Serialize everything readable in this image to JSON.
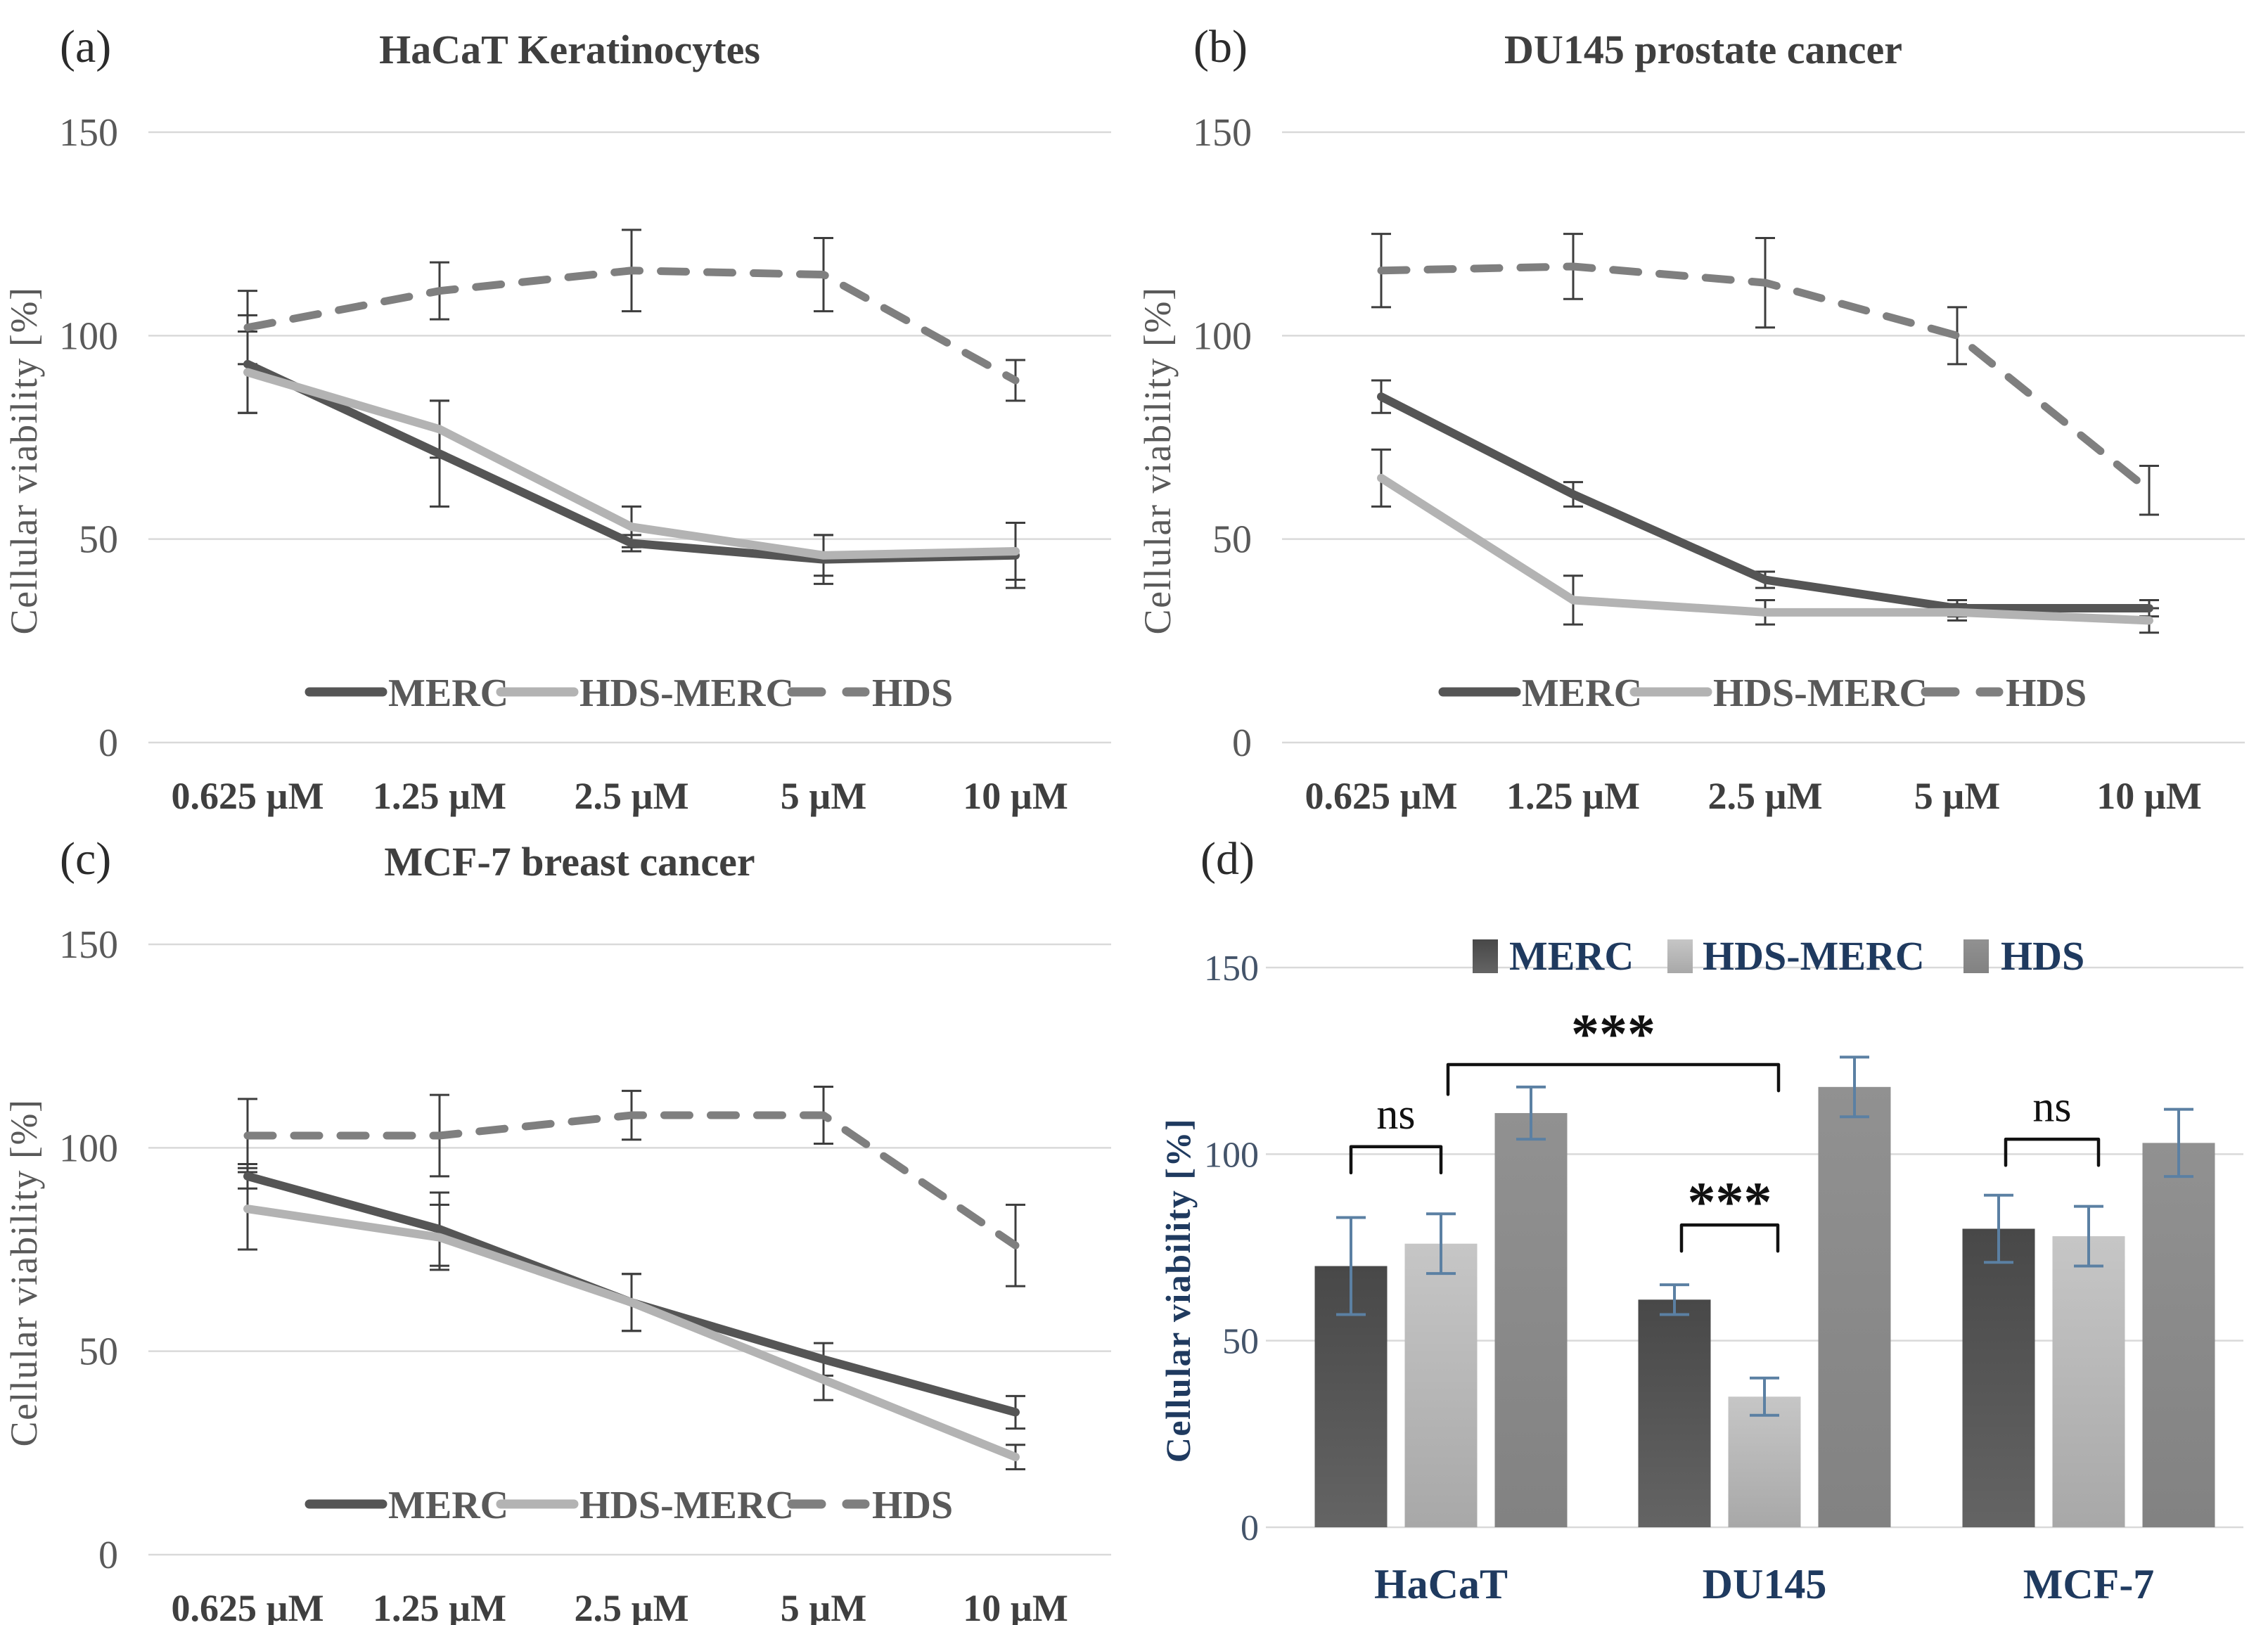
{
  "figure_caption": "Cellular viability panels",
  "colors": {
    "merc": "#555555",
    "hds_merc": "#b3b3b3",
    "hds": "#7f7f7f",
    "bar_merc_top": "#484848",
    "bar_merc_bottom": "#646464",
    "bar_hdsmerc_top": "#c6c6c6",
    "bar_hdsmerc_bottom": "#a8a8a8",
    "bar_hds_top": "#919191",
    "bar_hds_bottom": "#828282",
    "gridline": "#d9d9d9",
    "axis_text": "#595959",
    "xtick_text": "#3f3f3f",
    "title_text": "#3f3f3f",
    "panel_label_text": "#2b2b2b",
    "navy_text": "#1f3a5f",
    "ytick_bar_text": "#44546a",
    "error_bar_line": "#3d3d3d",
    "error_bar_blue": "#5b80a3",
    "annotation": "#111111"
  },
  "chart_data": [
    {
      "id": "a",
      "type": "line",
      "panel_label": "(a)",
      "title": "HaCaT Keratinocytes",
      "ylabel": "Cellular viability [%]",
      "yticks": [
        150,
        100,
        50,
        0
      ],
      "ylim": [
        0,
        150
      ],
      "grid": true,
      "legend_position": "inside-bottom",
      "categories": [
        "0.625 µM",
        "1.25 µM",
        "2.5 µM",
        "5 µM",
        "10 µM"
      ],
      "series": [
        {
          "name": "MERC",
          "style": "solid-dark",
          "values": [
            93,
            71,
            49,
            45,
            46
          ],
          "errors": [
            12,
            13,
            2,
            6,
            8
          ]
        },
        {
          "name": "HDS-MERC",
          "style": "solid-light",
          "values": [
            91,
            77,
            53,
            46,
            47
          ],
          "errors": [
            10,
            7,
            5,
            5,
            7
          ]
        },
        {
          "name": "HDS",
          "style": "dashed",
          "values": [
            102,
            111,
            116,
            115,
            89
          ],
          "errors": [
            9,
            7,
            10,
            9,
            5
          ]
        }
      ]
    },
    {
      "id": "b",
      "type": "line",
      "panel_label": "(b)",
      "title": "DU145 prostate cancer",
      "ylabel": "Cellular viability [%]",
      "yticks": [
        150,
        100,
        50,
        0
      ],
      "ylim": [
        0,
        150
      ],
      "grid": true,
      "legend_position": "inside-bottom",
      "categories": [
        "0.625 µM",
        "1.25 µM",
        "2.5 µM",
        "5 µM",
        "10 µM"
      ],
      "series": [
        {
          "name": "MERC",
          "style": "solid-dark",
          "values": [
            85,
            61,
            40,
            33,
            33
          ],
          "errors": [
            4,
            3,
            2,
            2,
            2
          ]
        },
        {
          "name": "HDS-MERC",
          "style": "solid-light",
          "values": [
            65,
            35,
            32,
            32,
            30
          ],
          "errors": [
            7,
            6,
            3,
            2,
            3
          ]
        },
        {
          "name": "HDS",
          "style": "dashed",
          "values": [
            116,
            117,
            113,
            100,
            62
          ],
          "errors": [
            9,
            8,
            11,
            7,
            6
          ]
        }
      ]
    },
    {
      "id": "c",
      "type": "line",
      "panel_label": "(c)",
      "title": "MCF-7 breast cancer",
      "ylabel": "Cellular viability [%]",
      "yticks": [
        150,
        100,
        50,
        0
      ],
      "ylim": [
        0,
        150
      ],
      "grid": true,
      "legend_position": "inside-bottom",
      "categories": [
        "0.625 µM",
        "1.25 µM",
        "2.5 µM",
        "5 µM",
        "10 µM"
      ],
      "series": [
        {
          "name": "MERC",
          "style": "solid-dark",
          "values": [
            93,
            80,
            62,
            48,
            35
          ],
          "errors": [
            3,
            9,
            7,
            4,
            4
          ]
        },
        {
          "name": "HDS-MERC",
          "style": "solid-light",
          "values": [
            85,
            78,
            62,
            43,
            24
          ],
          "errors": [
            10,
            8,
            7,
            5,
            3
          ]
        },
        {
          "name": "HDS",
          "style": "dashed",
          "values": [
            103,
            103,
            108,
            108,
            76
          ],
          "errors": [
            9,
            10,
            6,
            7,
            10
          ]
        }
      ]
    },
    {
      "id": "d",
      "type": "bar",
      "panel_label": "(d)",
      "title": "",
      "ylabel": "Cellular viability [%]",
      "yticks": [
        150,
        100,
        50,
        0
      ],
      "ylim": [
        0,
        150
      ],
      "grid": true,
      "legend_position": "top",
      "categories": [
        "HaCaT",
        "DU145",
        "MCF-7"
      ],
      "series": [
        {
          "name": "MERC",
          "values": [
            70,
            61,
            80
          ],
          "errors": [
            13,
            4,
            9
          ]
        },
        {
          "name": "HDS-MERC",
          "values": [
            76,
            35,
            78
          ],
          "errors": [
            8,
            5,
            8
          ]
        },
        {
          "name": "HDS",
          "values": [
            111,
            118,
            103
          ],
          "errors": [
            7,
            8,
            9
          ]
        }
      ],
      "annotations": [
        {
          "label": "ns",
          "from": [
            0,
            0
          ],
          "to": [
            0,
            1
          ],
          "bar_y": 102,
          "tick1": 95,
          "tick2": 95,
          "label_y": 111,
          "dx": [
            0,
            0
          ]
        },
        {
          "label": "***",
          "from": [
            0,
            1
          ],
          "to": [
            1,
            1
          ],
          "bar_y": 124,
          "tick1": 116,
          "tick2": 117,
          "label_y": 135,
          "dx": [
            10,
            20
          ]
        },
        {
          "label": "***",
          "from": [
            1,
            0
          ],
          "to": [
            1,
            1
          ],
          "bar_y": 81,
          "tick1": 74,
          "tick2": 74,
          "label_y": 90,
          "dx": [
            10,
            19
          ]
        },
        {
          "label": "ns",
          "from": [
            2,
            0
          ],
          "to": [
            2,
            1
          ],
          "bar_y": 104,
          "tick1": 97,
          "tick2": 97,
          "label_y": 113,
          "dx": [
            10,
            14
          ]
        }
      ]
    }
  ]
}
